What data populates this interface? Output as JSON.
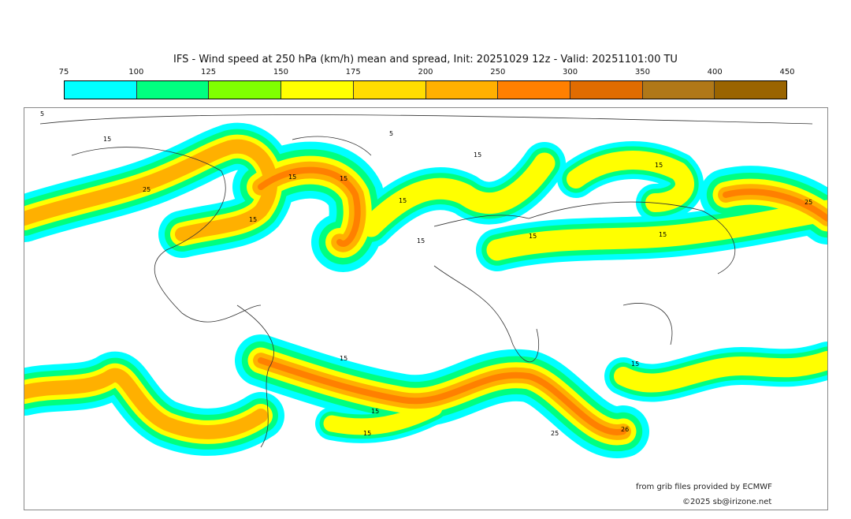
{
  "title": "IFS - Wind speed at 250 hPa (km/h) mean and spread, Init: 20251029 12z - Valid: 20251101:00 TU",
  "colorbar": {
    "ticks": [
      "75",
      "100",
      "125",
      "150",
      "175",
      "200",
      "250",
      "300",
      "350",
      "400",
      "450"
    ],
    "colors": [
      "#00ffff",
      "#00ff80",
      "#80ff00",
      "#ffff00",
      "#ffdd00",
      "#ffb000",
      "#ff8000",
      "#e06c00",
      "#b07818",
      "#9a6400"
    ]
  },
  "contour_labels": [
    "15",
    "25",
    "15",
    "15",
    "15",
    "15",
    "15",
    "15",
    "15",
    "25",
    "15",
    "15",
    "15",
    "15",
    "15",
    "25",
    "26",
    "15",
    "5",
    "5"
  ],
  "credits": {
    "source": "from grib files provided by ECMWF",
    "copyright": "©2025 sb@irizone.net"
  }
}
